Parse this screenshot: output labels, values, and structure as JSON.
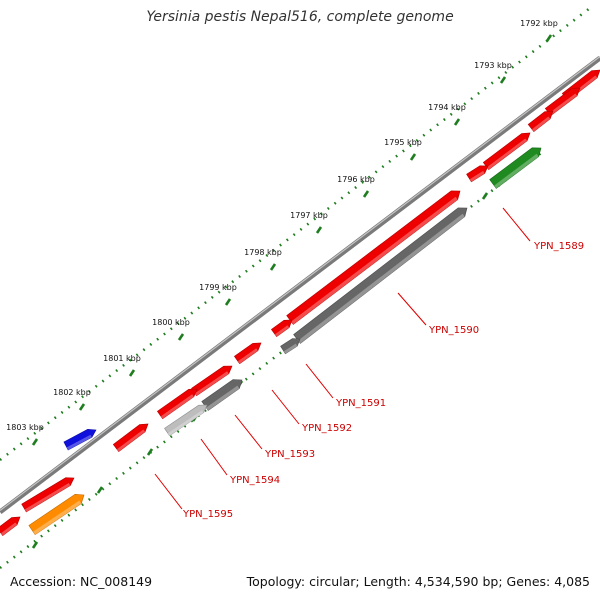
{
  "title": "Yersinia pestis Nepal516, complete genome",
  "footer": {
    "accession": "Accession: NC_008149",
    "topology": "Topology: circular; Length: 4,534,590 bp; Genes: 4,085"
  },
  "colors": {
    "backbone": "#7a7a7a",
    "scale_ticks": "#1e7d1e",
    "label_text": "#cc0000",
    "leader_line": "#e00000"
  },
  "scale": {
    "unit": "kbp",
    "ticks": [
      "1792 kbp",
      "1793 kbp",
      "1794 kbp",
      "1795 kbp",
      "1796 kbp",
      "1797 kbp",
      "1798 kbp",
      "1799 kbp",
      "1800 kbp",
      "1801 kbp",
      "1802 kbp",
      "1803 kbp"
    ]
  },
  "features": [
    {
      "kind": "cds",
      "strand": "+",
      "color": "#ee0000"
    },
    {
      "kind": "cds",
      "strand": "+",
      "color": "#ee0000"
    },
    {
      "kind": "cds",
      "strand": "+",
      "color": "#ee0000"
    },
    {
      "kind": "cds",
      "strand": "+",
      "color": "#ee0000"
    },
    {
      "kind": "cds",
      "strand": "+",
      "color": "#ee0000"
    },
    {
      "kind": "cds",
      "strand": "+",
      "color": "#ee0000"
    },
    {
      "kind": "cds",
      "strand": "+",
      "color": "#ee0000"
    },
    {
      "kind": "cds",
      "strand": "+",
      "color": "#ee0000"
    },
    {
      "kind": "cds",
      "strand": "+",
      "color": "#ee0000"
    },
    {
      "kind": "cds",
      "strand": "+",
      "color": "#ee0000"
    },
    {
      "kind": "cds",
      "strand": "+",
      "color": "#ee0000"
    },
    {
      "kind": "cds",
      "strand": "+",
      "color": "#ee0000"
    },
    {
      "kind": "cds",
      "strand": "+",
      "color": "#ee0000"
    },
    {
      "kind": "trna",
      "strand": "-",
      "color": "#1010dd"
    },
    {
      "kind": "gene",
      "strand": "+",
      "color": "#1f8a1f"
    },
    {
      "kind": "gene",
      "strand": "+",
      "color": "#666666"
    },
    {
      "kind": "gene",
      "strand": "+",
      "color": "#666666"
    },
    {
      "kind": "gene",
      "strand": "+",
      "color": "#666666"
    },
    {
      "kind": "gene",
      "strand": "+",
      "color": "#bdbdbd"
    },
    {
      "kind": "gene",
      "strand": "+",
      "color": "#ff8c00"
    }
  ],
  "gene_labels": [
    "YPN_1589",
    "YPN_1590",
    "YPN_1591",
    "YPN_1592",
    "YPN_1593",
    "YPN_1594",
    "YPN_1595"
  ]
}
